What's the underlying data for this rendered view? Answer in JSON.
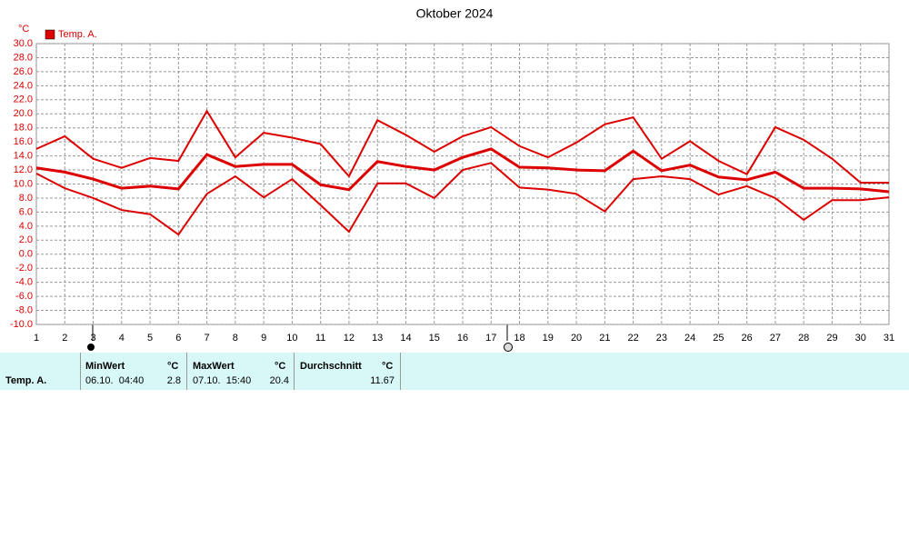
{
  "chart_data": {
    "type": "line",
    "title": "Oktober 2024",
    "y_unit": "°C",
    "x": [
      1,
      2,
      3,
      4,
      5,
      6,
      7,
      8,
      9,
      10,
      11,
      12,
      13,
      14,
      15,
      16,
      17,
      18,
      19,
      20,
      21,
      22,
      23,
      24,
      25,
      26,
      27,
      28,
      29,
      30,
      31
    ],
    "xlim": [
      1,
      31
    ],
    "xticks": [
      1,
      2,
      3,
      4,
      5,
      6,
      7,
      8,
      9,
      10,
      11,
      12,
      13,
      14,
      15,
      16,
      17,
      18,
      19,
      20,
      21,
      22,
      23,
      24,
      25,
      26,
      27,
      28,
      29,
      30,
      31
    ],
    "ylim": [
      -10,
      30
    ],
    "yticks": [
      {
        "value": 30,
        "label": "30.0"
      },
      {
        "value": 28,
        "label": "28.0"
      },
      {
        "value": 26,
        "label": "26.0"
      },
      {
        "value": 24,
        "label": "24.0"
      },
      {
        "value": 22,
        "label": "22.0"
      },
      {
        "value": 20,
        "label": "20.0"
      },
      {
        "value": 18,
        "label": "18.0"
      },
      {
        "value": 16,
        "label": "16.0"
      },
      {
        "value": 14,
        "label": "14.0"
      },
      {
        "value": 12,
        "label": "12.0"
      },
      {
        "value": 10,
        "label": "10.0"
      },
      {
        "value": 8,
        "label": "8.0"
      },
      {
        "value": 6,
        "label": "6.0"
      },
      {
        "value": 4,
        "label": "4.0"
      },
      {
        "value": 2,
        "label": "2.0"
      },
      {
        "value": 0,
        "label": "0.0"
      },
      {
        "value": -2,
        "label": "-2.0"
      },
      {
        "value": -4,
        "label": "-4.0"
      },
      {
        "value": -6,
        "label": "-6.0"
      },
      {
        "value": -8,
        "label": "-8.0"
      },
      {
        "value": -10,
        "label": "-10.0"
      }
    ],
    "grid": true,
    "series": [
      {
        "name": "Temp. A.",
        "color": "#dd0000",
        "values": [
          12.3,
          11.7,
          10.7,
          9.4,
          9.7,
          9.3,
          14.2,
          12.5,
          12.8,
          12.8,
          9.9,
          9.2,
          13.2,
          12.5,
          12.0,
          13.8,
          15.0,
          12.4,
          12.3,
          12.0,
          11.9,
          14.7,
          11.9,
          12.7,
          11.0,
          10.6,
          11.7,
          9.4,
          9.4,
          9.3,
          8.9
        ]
      },
      {
        "color": "#dd0000",
        "values": [
          15.0,
          16.8,
          13.6,
          12.3,
          13.7,
          13.3,
          20.4,
          13.8,
          17.3,
          16.6,
          15.7,
          11.1,
          19.1,
          17.0,
          14.6,
          16.8,
          18.1,
          15.4,
          13.8,
          15.9,
          18.5,
          19.5,
          13.6,
          16.1,
          13.3,
          11.4,
          18.1,
          16.3,
          13.6,
          10.2,
          10.2
        ]
      },
      {
        "color": "#dd0000",
        "values": [
          11.5,
          9.4,
          8.0,
          6.3,
          5.7,
          2.8,
          8.6,
          11.1,
          8.1,
          10.7,
          7.0,
          3.2,
          10.1,
          10.1,
          8.0,
          12.0,
          13.0,
          9.5,
          9.2,
          8.6,
          6.1,
          10.7,
          11.1,
          10.7,
          8.5,
          9.7,
          8.0,
          4.9,
          7.7,
          7.7,
          8.1
        ]
      }
    ]
  },
  "stats_table": {
    "row_label": "Temp. A.",
    "min": {
      "label": "MinWert",
      "unit": "°C",
      "time": "06.10.  04:40",
      "value": "2.8"
    },
    "max": {
      "label": "MaxWert",
      "unit": "°C",
      "time": "07.10.  15:40",
      "value": "20.4"
    },
    "avg": {
      "label": "Durchschnitt",
      "unit": "°C",
      "value": "11.67"
    }
  }
}
